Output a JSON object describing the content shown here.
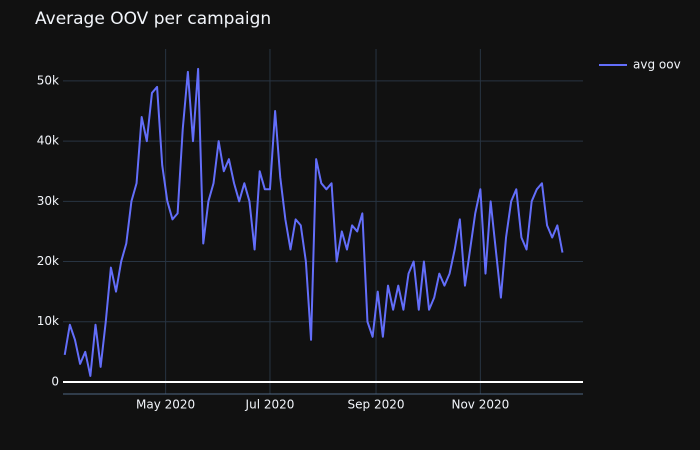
{
  "chart_data": {
    "type": "line",
    "title": "Average OOV per campaign",
    "x": [
      "2020-03-03",
      "2020-03-06",
      "2020-03-09",
      "2020-03-12",
      "2020-03-15",
      "2020-03-18",
      "2020-03-21",
      "2020-03-24",
      "2020-03-27",
      "2020-03-30",
      "2020-04-02",
      "2020-04-05",
      "2020-04-08",
      "2020-04-11",
      "2020-04-14",
      "2020-04-17",
      "2020-04-20",
      "2020-04-23",
      "2020-04-26",
      "2020-04-29",
      "2020-05-02",
      "2020-05-05",
      "2020-05-08",
      "2020-05-11",
      "2020-05-14",
      "2020-05-17",
      "2020-05-20",
      "2020-05-23",
      "2020-05-26",
      "2020-05-29",
      "2020-06-01",
      "2020-06-04",
      "2020-06-07",
      "2020-06-10",
      "2020-06-13",
      "2020-06-16",
      "2020-06-19",
      "2020-06-22",
      "2020-06-25",
      "2020-06-28",
      "2020-07-01",
      "2020-07-04",
      "2020-07-07",
      "2020-07-10",
      "2020-07-13",
      "2020-07-16",
      "2020-07-19",
      "2020-07-22",
      "2020-07-25",
      "2020-07-28",
      "2020-07-31",
      "2020-08-03",
      "2020-08-06",
      "2020-08-09",
      "2020-08-12",
      "2020-08-15",
      "2020-08-18",
      "2020-08-21",
      "2020-08-24",
      "2020-08-27",
      "2020-08-30",
      "2020-09-02",
      "2020-09-05",
      "2020-09-08",
      "2020-09-11",
      "2020-09-14",
      "2020-09-17",
      "2020-09-20",
      "2020-09-23",
      "2020-09-26",
      "2020-09-29",
      "2020-10-02",
      "2020-10-05",
      "2020-10-08",
      "2020-10-11",
      "2020-10-14",
      "2020-10-17",
      "2020-10-20",
      "2020-10-23",
      "2020-10-26",
      "2020-10-29",
      "2020-11-01",
      "2020-11-04",
      "2020-11-07",
      "2020-11-10",
      "2020-11-13",
      "2020-11-16",
      "2020-11-19",
      "2020-11-22",
      "2020-11-25",
      "2020-11-28",
      "2020-12-01",
      "2020-12-04",
      "2020-12-07",
      "2020-12-10",
      "2020-12-13",
      "2020-12-16",
      "2020-12-19"
    ],
    "series": [
      {
        "name": "avg oov",
        "color": "#636efa",
        "values": [
          4500,
          9500,
          7000,
          3000,
          5000,
          1000,
          9500,
          2500,
          10000,
          19000,
          15000,
          20000,
          23000,
          30000,
          33000,
          44000,
          40000,
          48000,
          49000,
          36000,
          30000,
          27000,
          28000,
          42000,
          51500,
          40000,
          52000,
          23000,
          30000,
          33000,
          40000,
          35000,
          37000,
          33000,
          30000,
          33000,
          30000,
          22000,
          35000,
          32000,
          32000,
          45000,
          34000,
          27000,
          22000,
          27000,
          26000,
          20000,
          7000,
          37000,
          33000,
          32000,
          33000,
          20000,
          25000,
          22000,
          26000,
          25000,
          28000,
          10000,
          7500,
          15000,
          7500,
          16000,
          12000,
          16000,
          12000,
          18000,
          20000,
          12000,
          20000,
          12000,
          14000,
          18000,
          16000,
          18000,
          22000,
          27000,
          16000,
          22000,
          28000,
          32000,
          18000,
          30000,
          22000,
          14000,
          24000,
          30000,
          32000,
          24000,
          22000,
          30000,
          32000,
          33000,
          26000,
          24000,
          26000,
          21500
        ]
      }
    ],
    "xlim": [
      "2020-03-02",
      "2020-12-31"
    ],
    "xticks": [
      {
        "value": "2020-05-01",
        "label": "May 2020"
      },
      {
        "value": "2020-07-01",
        "label": "Jul 2020"
      },
      {
        "value": "2020-09-01",
        "label": "Sep 2020"
      },
      {
        "value": "2020-11-01",
        "label": "Nov 2020"
      }
    ],
    "ylim": [
      -2000,
      55300
    ],
    "yticks": [
      0,
      {
        "value": 10000,
        "label": "10k"
      },
      {
        "value": 20000,
        "label": "20k"
      },
      {
        "value": 30000,
        "label": "30k"
      },
      {
        "value": 40000,
        "label": "40k"
      },
      {
        "value": 50000,
        "label": "50k"
      }
    ],
    "grid": true
  }
}
